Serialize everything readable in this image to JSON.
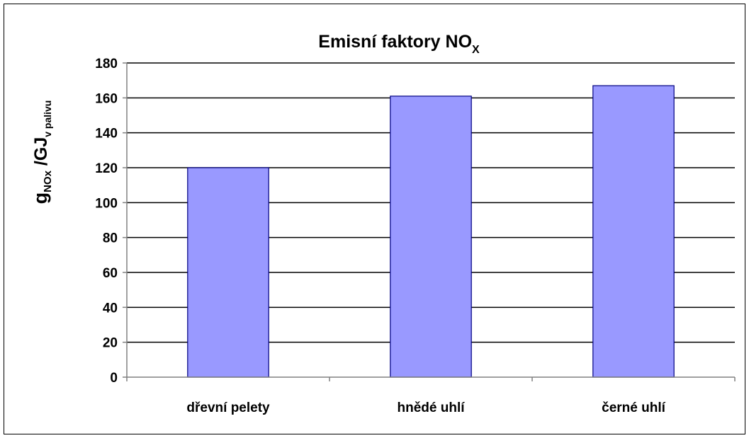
{
  "chart_data": {
    "type": "bar",
    "title": {
      "main": "Emisní faktory NO",
      "subscript": "X"
    },
    "ylabel": {
      "part1": "g",
      "part1_sub": "NOx",
      "part2": " /GJ",
      "part2_sub": "v palivu"
    },
    "xlabel": "",
    "categories": [
      "dřevní pelety",
      "hnědé uhlí",
      "černé uhlí"
    ],
    "values": [
      120,
      161,
      167
    ],
    "ylim": [
      0,
      180
    ],
    "yticks": [
      0,
      20,
      40,
      60,
      80,
      100,
      120,
      140,
      160,
      180
    ],
    "grid": true,
    "legend": "none",
    "colors": {
      "bar_fill": "#9999ff",
      "bar_stroke": "#000080",
      "grid": "#000000",
      "axis": "#808080"
    }
  }
}
